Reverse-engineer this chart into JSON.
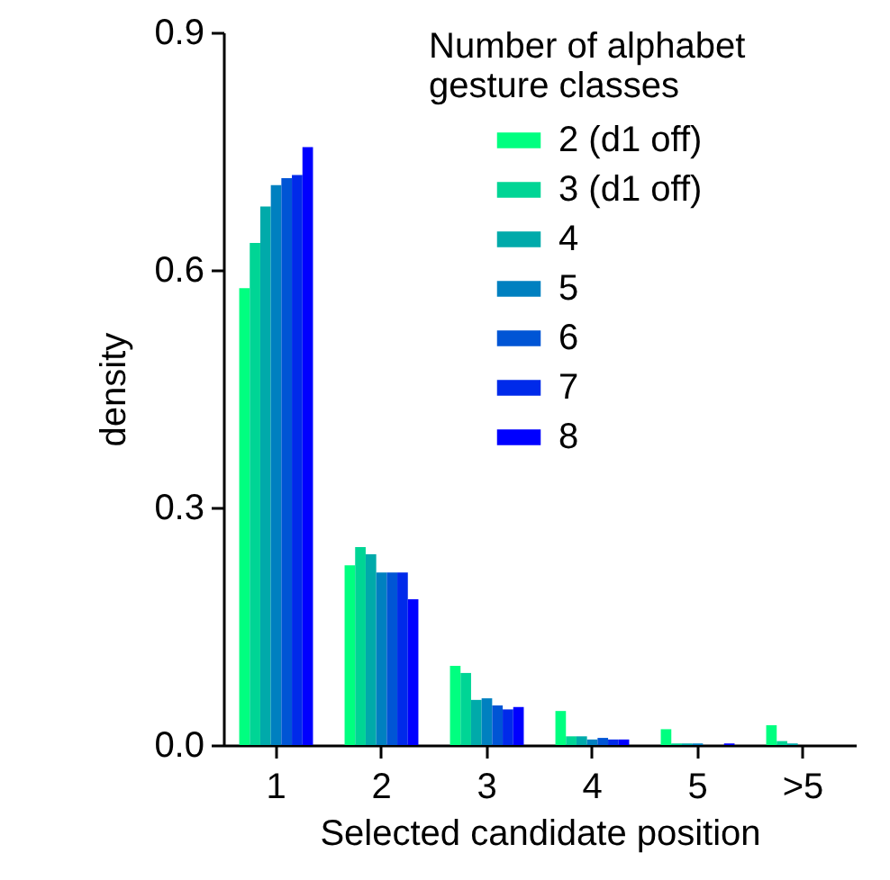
{
  "chart_data": {
    "type": "bar",
    "xlabel": "Selected candidate position",
    "ylabel": "density",
    "legend_title": "Number of alphabet gesture classes",
    "categories": [
      "1",
      "2",
      "3",
      "4",
      "5",
      ">5"
    ],
    "series": [
      {
        "name": "2 (d1 off)",
        "color": "#00ff80",
        "values": [
          0.577,
          0.227,
          0.1,
          0.043,
          0.02,
          0.025
        ]
      },
      {
        "name": "3 (d1 off)",
        "color": "#00d595",
        "values": [
          0.634,
          0.25,
          0.091,
          0.011,
          0.002,
          0.005
        ]
      },
      {
        "name": "4",
        "color": "#00aaaa",
        "values": [
          0.68,
          0.241,
          0.057,
          0.011,
          0.002,
          0.002
        ]
      },
      {
        "name": "5",
        "color": "#0080c0",
        "values": [
          0.707,
          0.218,
          0.059,
          0.007,
          0.002,
          0
        ]
      },
      {
        "name": "6",
        "color": "#0055d5",
        "values": [
          0.716,
          0.218,
          0.05,
          0.009,
          0,
          0
        ]
      },
      {
        "name": "7",
        "color": "#002aea",
        "values": [
          0.72,
          0.218,
          0.045,
          0.007,
          0,
          0
        ]
      },
      {
        "name": "8",
        "color": "#0000ff",
        "values": [
          0.755,
          0.184,
          0.048,
          0.007,
          0.002,
          0
        ]
      }
    ],
    "ylim": [
      0,
      0.9
    ],
    "yticks": [
      {
        "value": 0,
        "label": "0.0"
      },
      {
        "value": 0.3,
        "label": "0.3"
      },
      {
        "value": 0.6,
        "label": "0.6"
      },
      {
        "value": 0.9,
        "label": "0.9"
      }
    ],
    "grid": false,
    "legend": "top right"
  }
}
